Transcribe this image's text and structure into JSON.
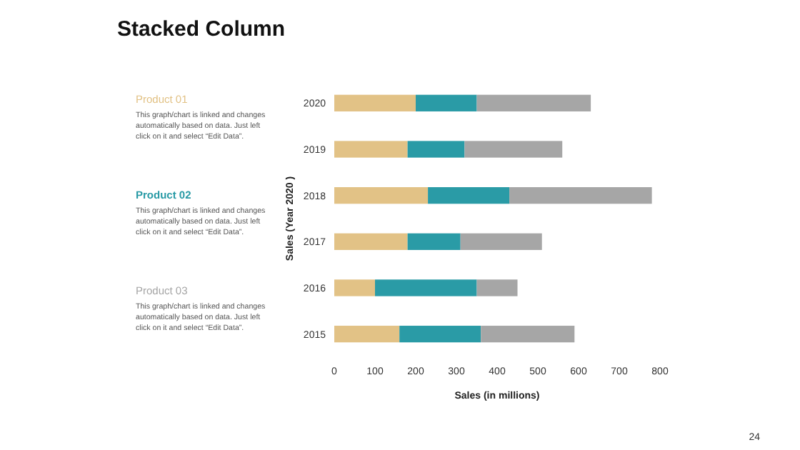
{
  "chart_data": {
    "type": "bar",
    "orientation": "horizontal",
    "stacked": true,
    "title": "Stacked Column",
    "xlabel": "Sales (in millions)",
    "ylabel": "Sales (Year 2020 )",
    "categories": [
      "2020",
      "2019",
      "2018",
      "2017",
      "2016",
      "2015"
    ],
    "series": [
      {
        "name": "Product 01",
        "color": "#e2c286",
        "values": [
          200,
          180,
          230,
          180,
          100,
          160
        ]
      },
      {
        "name": "Product 02",
        "color": "#2a9ba6",
        "values": [
          150,
          140,
          200,
          130,
          250,
          200
        ]
      },
      {
        "name": "Product 03",
        "color": "#a6a6a6",
        "values": [
          280,
          240,
          350,
          200,
          100,
          230
        ]
      }
    ],
    "xlim": [
      0,
      800
    ],
    "xticks": [
      0,
      100,
      200,
      300,
      400,
      500,
      600,
      700,
      800
    ],
    "grid": false,
    "legend": "left",
    "annotations": [
      "This graph/chart is linked and changes automatically based on data. Just left click on it and select “Edit Data”.",
      "This graph/chart is linked and changes automatically based on data. Just left click on it and select “Edit Data”.",
      "This graph/chart is linked and changes automatically based on data. Just left click on it and select “Edit Data”.",
      "24"
    ]
  }
}
